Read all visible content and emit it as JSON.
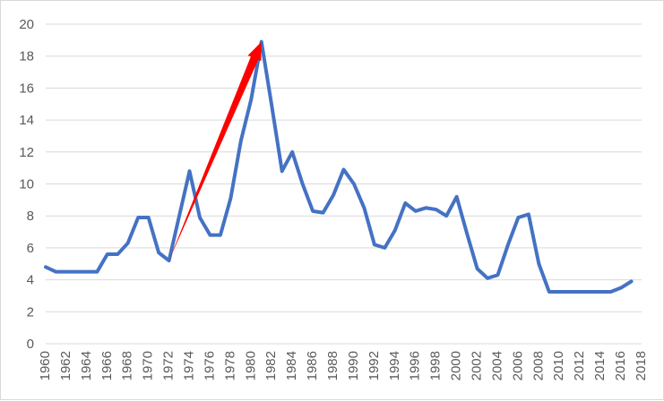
{
  "chart_data": {
    "type": "line",
    "title": "",
    "xlabel": "",
    "ylabel": "",
    "xlim": [
      1960,
      2018
    ],
    "ylim": [
      0,
      20
    ],
    "y_ticks": [
      "0",
      "2",
      "4",
      "6",
      "8",
      "10",
      "12",
      "14",
      "16",
      "18",
      "20"
    ],
    "x_ticks": [
      "1960",
      "1962",
      "1964",
      "1966",
      "1968",
      "1970",
      "1972",
      "1974",
      "1976",
      "1978",
      "1980",
      "1982",
      "1984",
      "1986",
      "1988",
      "1990",
      "1992",
      "1994",
      "1996",
      "1998",
      "2000",
      "2002",
      "2004",
      "2006",
      "2008",
      "2010",
      "2012",
      "2014",
      "2016",
      "2018"
    ],
    "grid": "horizontal",
    "legend": "none",
    "colors": {
      "series_line": "#4472c4",
      "arrow": "#ff0000",
      "grid": "#d9d9d9",
      "tick_text": "#595959"
    },
    "series": [
      {
        "x": [
          1960,
          1961,
          1962,
          1963,
          1964,
          1965,
          1966,
          1967,
          1968,
          1969,
          1970,
          1971,
          1972,
          1973,
          1974,
          1975,
          1976,
          1977,
          1978,
          1979,
          1980,
          1981,
          1982,
          1983,
          1984,
          1985,
          1986,
          1987,
          1988,
          1989,
          1990,
          1991,
          1992,
          1993,
          1994,
          1995,
          1996,
          1997,
          1998,
          1999,
          2000,
          2001,
          2002,
          2003,
          2004,
          2005,
          2006,
          2007,
          2008,
          2009,
          2010,
          2011,
          2012,
          2013,
          2014,
          2015,
          2016,
          2017
        ],
        "values": [
          4.8,
          4.5,
          4.5,
          4.5,
          4.5,
          4.5,
          5.6,
          5.6,
          6.3,
          7.9,
          7.9,
          5.7,
          5.2,
          8.0,
          10.8,
          7.9,
          6.8,
          6.8,
          9.1,
          12.7,
          15.3,
          18.9,
          14.9,
          10.8,
          12.0,
          10.0,
          8.3,
          8.2,
          9.3,
          10.9,
          10.0,
          8.5,
          6.2,
          6.0,
          7.1,
          8.8,
          8.3,
          8.5,
          8.4,
          8.0,
          9.2,
          6.9,
          4.7,
          4.1,
          4.3,
          6.2,
          7.9,
          8.1,
          5.0,
          3.25,
          3.25,
          3.25,
          3.25,
          3.25,
          3.25,
          3.25,
          3.5,
          3.9
        ]
      }
    ],
    "annotations": [
      {
        "type": "arrow",
        "from": [
          1972,
          5.2
        ],
        "to": [
          1981,
          18.9
        ]
      }
    ]
  }
}
